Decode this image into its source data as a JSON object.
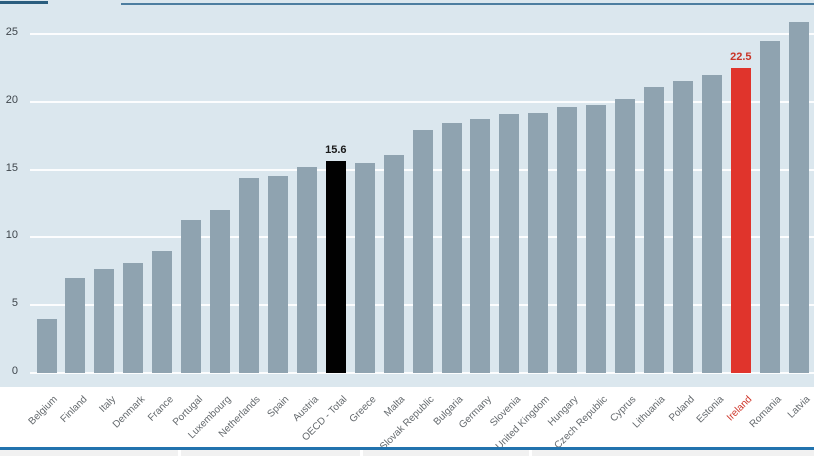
{
  "chart_data": {
    "type": "bar",
    "title": "",
    "categories": [
      "Belgium",
      "Finland",
      "Italy",
      "Denmark",
      "France",
      "Portugal",
      "Luxembourg",
      "Netherlands",
      "Spain",
      "Austria",
      "OECD - Total",
      "Greece",
      "Malta",
      "Slovak Republic",
      "Bulgaria",
      "Germany",
      "Slovenia",
      "United Kingdom",
      "Hungary",
      "Czech Republic",
      "Cyprus",
      "Lithuania",
      "Poland",
      "Estonia",
      "Ireland",
      "Romania",
      "Latvia"
    ],
    "values": [
      4.0,
      7.0,
      7.7,
      8.1,
      9.0,
      11.3,
      12.0,
      14.4,
      14.5,
      15.2,
      15.6,
      15.5,
      16.1,
      17.9,
      18.4,
      18.7,
      19.1,
      19.2,
      19.6,
      19.8,
      20.2,
      21.1,
      21.5,
      22.0,
      22.5,
      24.5,
      25.9
    ],
    "yticks": [
      "0",
      "5",
      "10",
      "15",
      "20",
      "25"
    ],
    "ylim": [
      0,
      27.5
    ],
    "grid": "horizontal-white-on-blue",
    "legend": "none",
    "xlabel": "",
    "ylabel": "",
    "highlighted_bars": [
      {
        "category": "OECD - Total",
        "bar_color": "#010101",
        "data_label": "15.6",
        "label_color": "#1a1a1a"
      },
      {
        "category": "Ireland",
        "bar_color": "#e0342c",
        "data_label": "22.5",
        "label_color": "#c93427"
      }
    ],
    "colors": {
      "bar_default": "#8fa3b0",
      "plot_background": "#dbe7ee",
      "gridline": "rgba(255,255,255,0.9)",
      "y_tick_text": "#3f464c",
      "x_tick_text": "#63686c",
      "x_tick_text_ireland": "#cf3529"
    }
  },
  "decorations": {
    "top_line_left_color": "#2a5d7e",
    "top_line_right_color": "#4d7ea0",
    "bottom_line_color": "#2273ae",
    "table_strip_color": "#f1f1f1"
  }
}
